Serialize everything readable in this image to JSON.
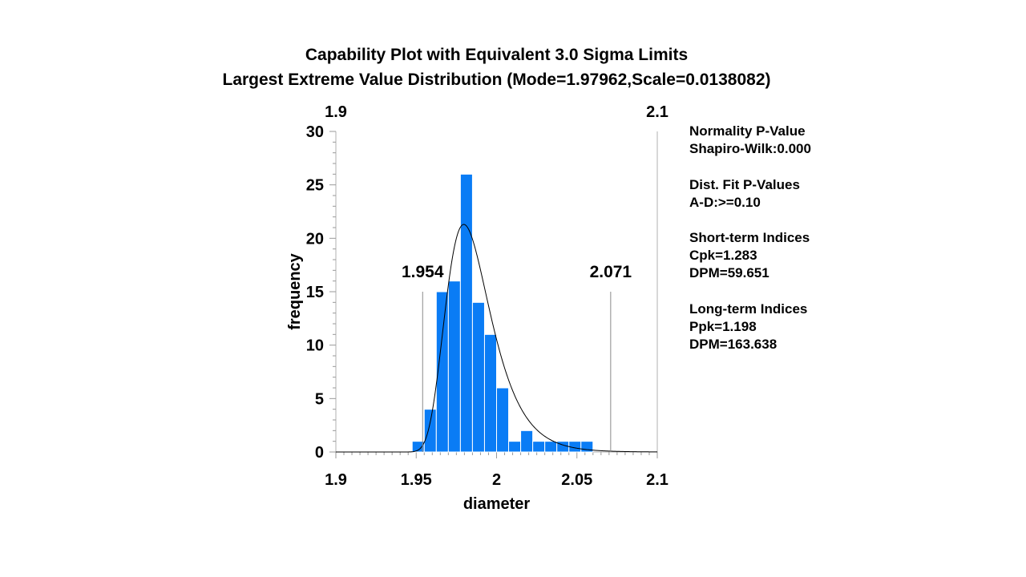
{
  "chart_data": {
    "type": "bar",
    "title": "Capability Plot with Equivalent 3.0 Sigma Limits",
    "subtitle": "Largest Extreme Value Distribution (Mode=1.97962,Scale=0.0138082)",
    "xlabel": "diameter",
    "ylabel": "frequency",
    "xlim": [
      1.9,
      2.1
    ],
    "ylim": [
      0,
      30
    ],
    "x_ticks": [
      "1.9",
      "1.95",
      "2",
      "2.05",
      "2.1"
    ],
    "y_ticks": [
      "0",
      "5",
      "10",
      "15",
      "20",
      "25",
      "30"
    ],
    "top_axis_labels": [
      "1.9",
      "2.1"
    ],
    "bin_edges": [
      1.9475,
      1.955,
      1.9625,
      1.97,
      1.9775,
      1.985,
      1.9925,
      2.0,
      2.0075,
      2.015,
      2.0225,
      2.03,
      2.0375,
      2.045,
      2.0525,
      2.06
    ],
    "values": [
      1,
      4,
      15,
      16,
      26,
      14,
      11,
      6,
      1,
      2,
      1,
      1,
      1,
      1,
      1
    ],
    "bar_color": "#0a7cf5",
    "fitted_curve": {
      "distribution": "Largest Extreme Value",
      "mode": 1.97962,
      "scale": 0.0138082,
      "peak_frequency": 21.3
    },
    "spec_lines": [
      {
        "label": "1.954",
        "value": 1.954
      },
      {
        "label": "2.071",
        "value": 2.071
      }
    ],
    "grid": false,
    "legend": "none"
  },
  "side_panel": {
    "normality": {
      "heading": "Normality P-Value",
      "line": "Shapiro-Wilk:0.000"
    },
    "dist_fit": {
      "heading": "Dist. Fit P-Values",
      "line": "A-D:>=0.10"
    },
    "short_term": {
      "heading": "Short-term Indices",
      "cpk": "Cpk=1.283",
      "dpm": "DPM=59.651"
    },
    "long_term": {
      "heading": "Long-term Indices",
      "ppk": "Ppk=1.198",
      "dpm": "DPM=163.638"
    }
  }
}
